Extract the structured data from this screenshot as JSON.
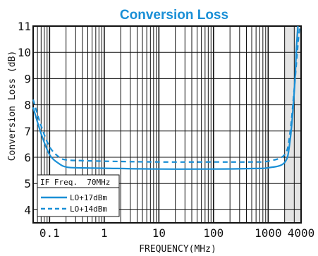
{
  "chart_data": {
    "type": "line",
    "title": "Conversion Loss",
    "xlabel": "FREQUENCY(MHz)",
    "ylabel": "Conversion Loss (dB)",
    "x_scale": "log",
    "xlim": [
      0.05,
      4000
    ],
    "ylim": [
      3.5,
      11
    ],
    "x_ticks": [
      {
        "value": 0.1,
        "label": "0.1"
      },
      {
        "value": 1,
        "label": "1"
      },
      {
        "value": 10,
        "label": "10"
      },
      {
        "value": 100,
        "label": "100"
      },
      {
        "value": 1000,
        "label": "1000"
      },
      {
        "value": 4000,
        "label": "4000"
      }
    ],
    "y_ticks": [
      {
        "value": 4,
        "label": "4"
      },
      {
        "value": 5,
        "label": "5"
      },
      {
        "value": 6,
        "label": "6"
      },
      {
        "value": 7,
        "label": "7"
      },
      {
        "value": 8,
        "label": "8"
      },
      {
        "value": 9,
        "label": "9"
      },
      {
        "value": 10,
        "label": "10"
      },
      {
        "value": 11,
        "label": "11"
      }
    ],
    "grid": true,
    "shaded_x_range": [
      2000,
      4000
    ],
    "legend": {
      "placement": "bottom-left",
      "note": "IF Freq.  70MHz",
      "entries": [
        "LO+17dBm",
        "LO+14dBm"
      ]
    },
    "series": [
      {
        "name": "LO+17dBm",
        "style": "solid",
        "color": "#1a8fd6",
        "x": [
          0.05,
          0.07,
          0.1,
          0.15,
          0.2,
          0.3,
          1,
          10,
          100,
          500,
          1000,
          2000,
          2500,
          3000,
          3300,
          3500
        ],
        "y": [
          7.9,
          6.9,
          6.1,
          5.75,
          5.63,
          5.6,
          5.58,
          5.55,
          5.55,
          5.57,
          5.6,
          5.8,
          6.6,
          8.5,
          10.2,
          11
        ]
      },
      {
        "name": "LO+14dBm",
        "style": "dashed",
        "color": "#1a8fd6",
        "x": [
          0.05,
          0.07,
          0.1,
          0.15,
          0.2,
          0.3,
          1,
          10,
          100,
          500,
          1000,
          2000,
          2500,
          3000,
          3500,
          3800
        ],
        "y": [
          8.2,
          7.2,
          6.4,
          6.0,
          5.9,
          5.88,
          5.85,
          5.82,
          5.82,
          5.82,
          5.85,
          6.1,
          6.9,
          8.6,
          10.3,
          11
        ]
      }
    ]
  }
}
